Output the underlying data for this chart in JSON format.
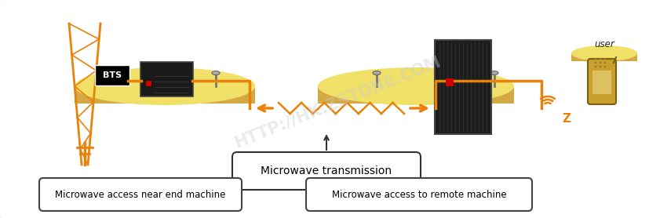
{
  "background_color": "#ffffff",
  "border_color": "#888888",
  "orange": "#E8820A",
  "dark_orange": "#CC6600",
  "light_yellow": "#F0E068",
  "tan": "#D4A843",
  "label_near": "Microwave access near end machine",
  "label_remote": "Microwave access to remote machine",
  "label_transmission": "Microwave transmission",
  "label_bts": "BTS",
  "label_user": "user",
  "watermark": "HTTP://HK.ZSTONE.COM"
}
